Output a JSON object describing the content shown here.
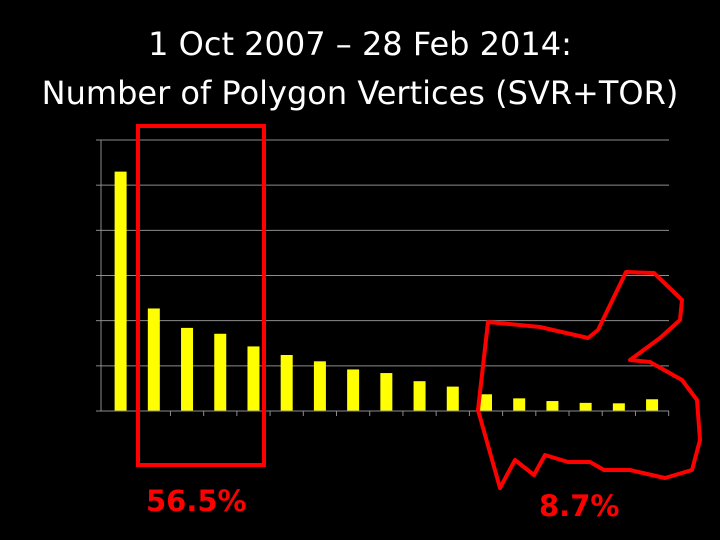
{
  "slide": {
    "title_line1": "1 Oct 2007 – 28 Feb 2014:",
    "title_line2": "Number of Polygon Vertices (SVR+TOR)"
  },
  "chart_data": {
    "type": "bar",
    "title": "1 Oct 2007 – 28 Feb 2014: Number of Polygon Vertices (SVR+TOR)",
    "xlabel": "",
    "ylabel": "",
    "categories": [
      "",
      "",
      "",
      "",
      "",
      "",
      "",
      "",
      "",
      "",
      "",
      "",
      "",
      "",
      "",
      "",
      ""
    ],
    "values": [
      5.3,
      2.27,
      1.84,
      1.71,
      1.43,
      1.24,
      1.1,
      0.92,
      0.84,
      0.66,
      0.54,
      0.37,
      0.28,
      0.22,
      0.18,
      0.17,
      0.26
    ],
    "ylim": [
      0,
      6
    ],
    "grid": true,
    "bar_color": "#ffff00",
    "grid_color": "#8c8c8c",
    "annotations": [
      {
        "text": "56.5%",
        "color": "#ff0000"
      },
      {
        "text": "8.7%",
        "color": "#ff0000"
      }
    ],
    "highlight_color": "#ff0000"
  }
}
